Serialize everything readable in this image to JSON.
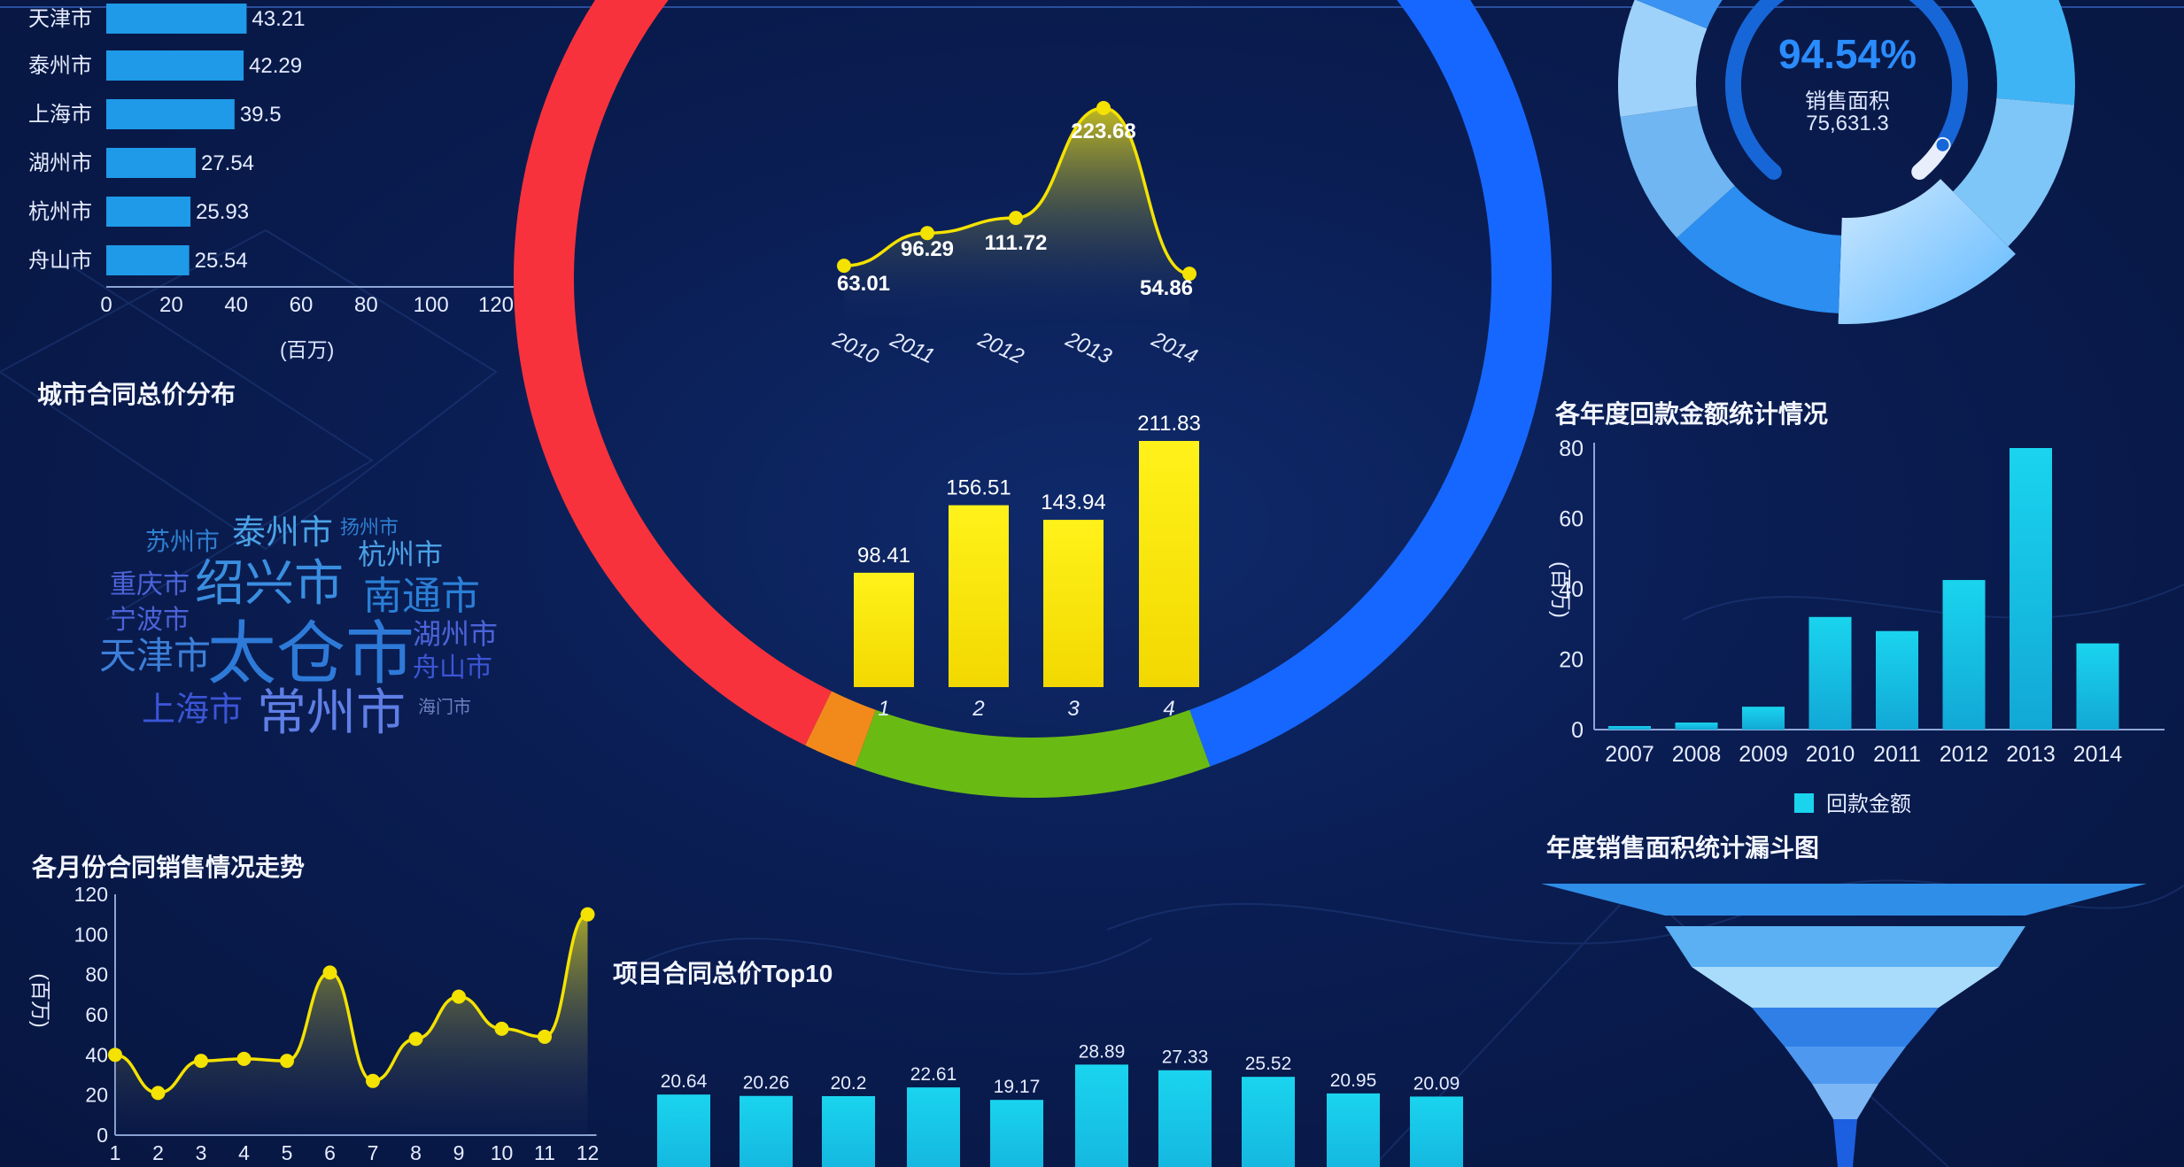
{
  "colors": {
    "accent_cyan": "#1ad4ee",
    "accent_yellow": "#ffee00",
    "ring_red": "#f8323c",
    "ring_blue": "#1667ff",
    "ring_green": "#6aba14",
    "ring_orange": "#f28a1b",
    "bar_blue": "#1e9ae8"
  },
  "city_bar": {
    "chart_data": {
      "type": "bar",
      "orientation": "horizontal",
      "categories": [
        "天津市",
        "泰州市",
        "上海市",
        "湖州市",
        "杭州市",
        "舟山市"
      ],
      "values": [
        43.21,
        42.29,
        39.5,
        27.54,
        25.93,
        25.54
      ],
      "xlim": [
        0,
        120
      ],
      "ticks": [
        "0",
        "20",
        "40",
        "60",
        "80",
        "100",
        "120"
      ],
      "xlabel": "(百万)"
    }
  },
  "wordcloud": {
    "title": "城市合同总价分布",
    "words": [
      "苏州市",
      "泰州市",
      "扬州市",
      "杭州市",
      "重庆市",
      "绍兴市",
      "南通市",
      "宁波市",
      "天津市",
      "太仓市",
      "湖州市",
      "舟山市",
      "上海市",
      "常州市",
      "海门市"
    ]
  },
  "ring_line": {
    "chart_data": {
      "type": "line",
      "categories": [
        "2010",
        "2011",
        "2012",
        "2013",
        "2014"
      ],
      "values": [
        63.01,
        96.29,
        111.72,
        223.68,
        54.86
      ]
    }
  },
  "ring_bar": {
    "chart_data": {
      "type": "bar",
      "categories": [
        "1",
        "2",
        "3",
        "4"
      ],
      "values": [
        98.41,
        156.51,
        143.94,
        211.83
      ]
    }
  },
  "gauge": {
    "percent": "94.54%",
    "label": "销售面积",
    "value": "75,631.3"
  },
  "annual_bar": {
    "title": "各年度回款金额统计情况",
    "chart_data": {
      "type": "bar",
      "categories": [
        "2007",
        "2008",
        "2009",
        "2010",
        "2011",
        "2012",
        "2013",
        "2014"
      ],
      "values": [
        1,
        2,
        6.5,
        32,
        28,
        42.5,
        80,
        24.5
      ],
      "ylim": [
        0,
        80
      ],
      "ticks": [
        "0",
        "20",
        "40",
        "60",
        "80"
      ],
      "ylabel": "(百万)",
      "legend": "回款金额"
    }
  },
  "funnel": {
    "title": "年度销售面积统计漏斗图"
  },
  "monthly_line": {
    "title": "各月份合同销售情况走势",
    "chart_data": {
      "type": "area",
      "categories": [
        "1",
        "2",
        "3",
        "4",
        "5",
        "6",
        "7",
        "8",
        "9",
        "10",
        "11",
        "12"
      ],
      "values": [
        40,
        21,
        37,
        38,
        37,
        81,
        27,
        48,
        69,
        53,
        49,
        110
      ],
      "ylim": [
        0,
        120
      ],
      "ticks": [
        "0",
        "20",
        "40",
        "60",
        "80",
        "100",
        "120"
      ],
      "ylabel": "(百万)"
    }
  },
  "top10": {
    "title": "项目合同总价Top10",
    "chart_data": {
      "type": "bar",
      "values": [
        20.64,
        20.26,
        20.2,
        22.61,
        19.17,
        28.89,
        27.33,
        25.52,
        20.95,
        20.09
      ]
    }
  }
}
